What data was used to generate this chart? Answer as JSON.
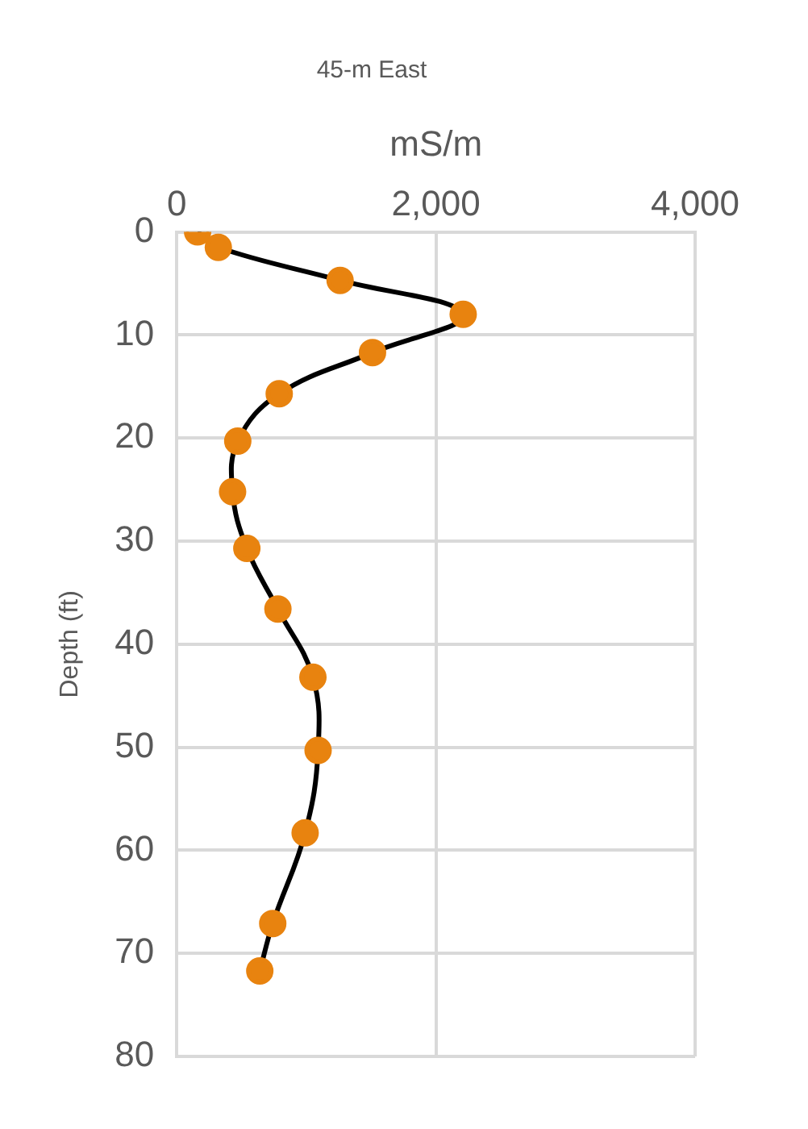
{
  "chart_data": {
    "type": "line",
    "title": "45-m East",
    "xlabel": "mS/m",
    "ylabel": "Depth (ft)",
    "xlim": [
      0,
      4000
    ],
    "xticks": [
      {
        "value": 0,
        "label": "0"
      },
      {
        "value": 2000,
        "label": "2,000"
      },
      {
        "value": 4000,
        "label": "4,000"
      }
    ],
    "ylim": [
      80,
      0
    ],
    "yticks": [
      0,
      10,
      20,
      30,
      40,
      50,
      60,
      70,
      80
    ],
    "series": [
      {
        "color": "#e8830f",
        "x": [
          160,
          320,
          1260,
          2210,
          1510,
          790,
          470,
          430,
          540,
          780,
          1050,
          1090,
          990,
          740,
          640
        ],
        "values": [
          0,
          1.5,
          4.7,
          8,
          11.7,
          15.7,
          20.3,
          25.2,
          30.7,
          36.6,
          43.2,
          50.3,
          58.3,
          67.1,
          71.7
        ]
      }
    ],
    "marker": "circle",
    "grid": true,
    "legend": false
  }
}
